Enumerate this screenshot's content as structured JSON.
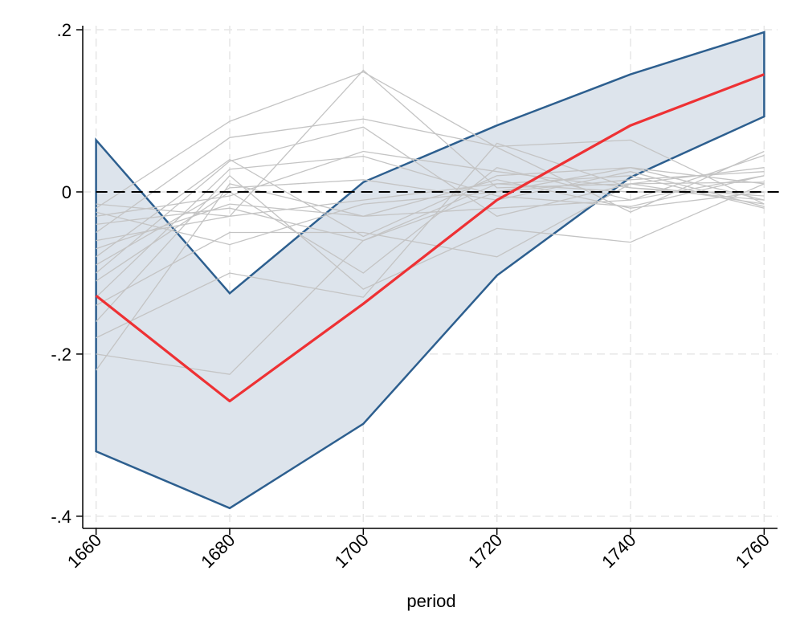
{
  "chart_data": {
    "type": "line",
    "title": "",
    "xlabel": "period",
    "ylabel": "",
    "x": [
      1660,
      1680,
      1700,
      1720,
      1740,
      1760
    ],
    "xlim": [
      1658,
      1762
    ],
    "ylim": [
      -0.415,
      0.205
    ],
    "x_ticks": [
      {
        "value": 1660,
        "label": "1660"
      },
      {
        "value": 1680,
        "label": "1680"
      },
      {
        "value": 1700,
        "label": "1700"
      },
      {
        "value": 1720,
        "label": "1720"
      },
      {
        "value": 1740,
        "label": "1740"
      },
      {
        "value": 1760,
        "label": "1760"
      }
    ],
    "y_ticks": [
      {
        "value": 0.2,
        "label": ".2"
      },
      {
        "value": 0,
        "label": "0"
      },
      {
        "value": -0.2,
        "label": "-.2"
      },
      {
        "value": -0.4,
        "label": "-.4"
      }
    ],
    "grid": true,
    "reference_line": 0,
    "band": {
      "upper": [
        0.064,
        -0.125,
        0.012,
        0.082,
        0.145,
        0.197
      ],
      "lower": [
        -0.32,
        -0.39,
        -0.286,
        -0.103,
        0.018,
        0.093
      ]
    },
    "main_series": {
      "values": [
        -0.128,
        -0.258,
        -0.138,
        -0.01,
        0.082,
        0.145
      ]
    },
    "background_series": [
      {
        "values": [
          -0.02,
          0.087,
          0.148,
          0.055,
          -0.025,
          0.05
        ]
      },
      {
        "values": [
          -0.05,
          0.067,
          0.09,
          0.056,
          0.064,
          -0.015
        ]
      },
      {
        "values": [
          -0.08,
          0.04,
          -0.055,
          0.02,
          0.03,
          -0.01
        ]
      },
      {
        "values": [
          -0.1,
          0.038,
          0.08,
          -0.03,
          0.01,
          0.03
        ]
      },
      {
        "values": [
          -0.13,
          0.028,
          0.044,
          -0.005,
          -0.018,
          0.02
        ]
      },
      {
        "values": [
          -0.16,
          0.02,
          -0.12,
          -0.045,
          -0.062,
          0.01
        ]
      },
      {
        "values": [
          -0.04,
          -0.02,
          -0.06,
          0.01,
          0.02,
          -0.02
        ]
      },
      {
        "values": [
          -0.06,
          -0.03,
          -0.01,
          0.01,
          0.0,
          0.0
        ]
      },
      {
        "values": [
          -0.015,
          -0.03,
          0.15,
          0.005,
          0.01,
          -0.015
        ]
      },
      {
        "values": [
          -0.025,
          -0.065,
          -0.015,
          0.0,
          0.015,
          0.025
        ]
      },
      {
        "values": [
          -0.11,
          0.0,
          -0.1,
          0.03,
          -0.01,
          0.02
        ]
      },
      {
        "values": [
          -0.18,
          -0.1,
          -0.13,
          0.06,
          0.005,
          -0.01
        ]
      },
      {
        "values": [
          -0.2,
          -0.225,
          -0.06,
          0.0,
          0.03,
          0.01
        ]
      },
      {
        "values": [
          -0.22,
          0.01,
          -0.03,
          -0.02,
          -0.01,
          0.045
        ]
      },
      {
        "values": [
          -0.03,
          -0.005,
          0.05,
          0.025,
          0.005,
          -0.005
        ]
      },
      {
        "values": [
          -0.07,
          -0.015,
          -0.03,
          0.015,
          -0.02,
          0.0
        ]
      },
      {
        "values": [
          -0.09,
          0.005,
          0.015,
          -0.01,
          0.025,
          -0.018
        ]
      },
      {
        "values": [
          -0.14,
          -0.05,
          -0.05,
          -0.08,
          0.01,
          0.012
        ]
      }
    ],
    "colors": {
      "band_fill": "#dde4ec",
      "band_edge": "#2d5f8f",
      "main_line": "#ee3134",
      "background_line": "#c4c4c4",
      "reference_line": "#000000",
      "grid": "#e6e6e6"
    }
  }
}
